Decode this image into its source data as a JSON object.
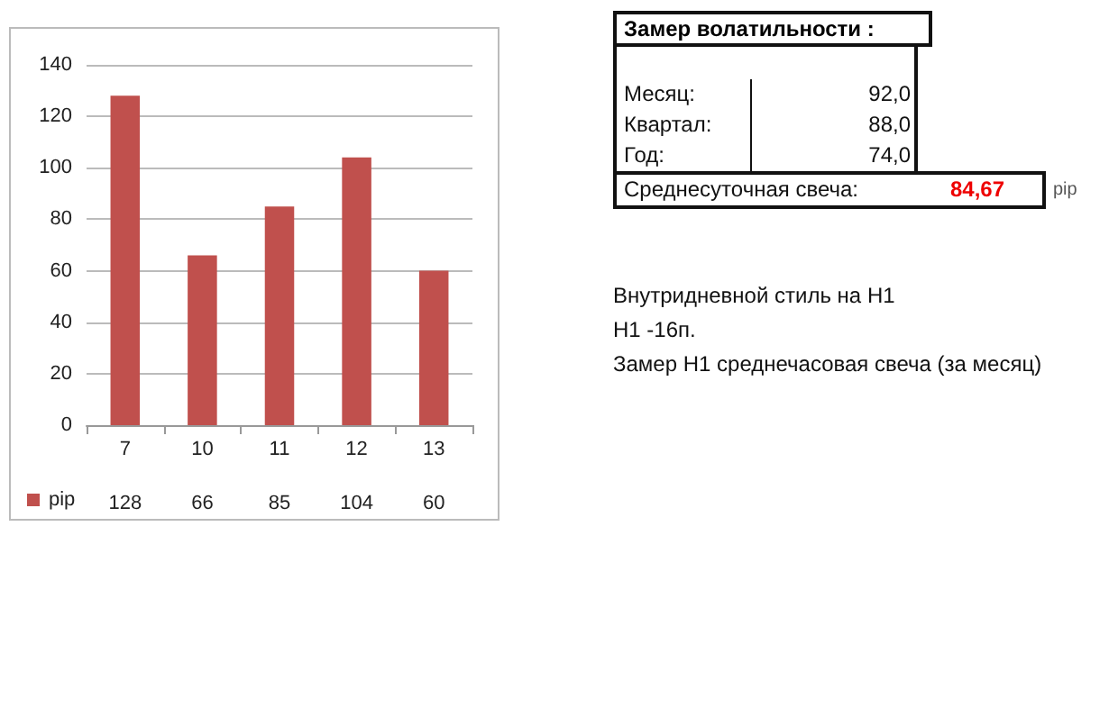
{
  "chart_data": [
    {
      "type": "bar",
      "categories": [
        "7",
        "10",
        "11",
        "12",
        "13"
      ],
      "series": [
        {
          "name": "pip",
          "color": "#c0504d",
          "values": [
            128,
            66,
            85,
            104,
            60
          ]
        }
      ],
      "ylim": [
        0,
        140
      ],
      "yticks": [
        0,
        20,
        40,
        60,
        80,
        100,
        120,
        140
      ],
      "grid": "y",
      "legend": "bottom left",
      "data_labels": true
    },
    {
      "type": "other",
      "annotations": [
        "Замер  волатильности  :",
        "Месяц:",
        "92,0",
        "Квартал:",
        "88,0",
        "Год:",
        "74,0",
        "Среднесуточная свеча:",
        "84,67",
        "pip",
        "Внутридневной стиль на H1",
        "H1 -16п.",
        "Замер H1 среднечасовая свеча (за месяц)"
      ]
    }
  ]
}
